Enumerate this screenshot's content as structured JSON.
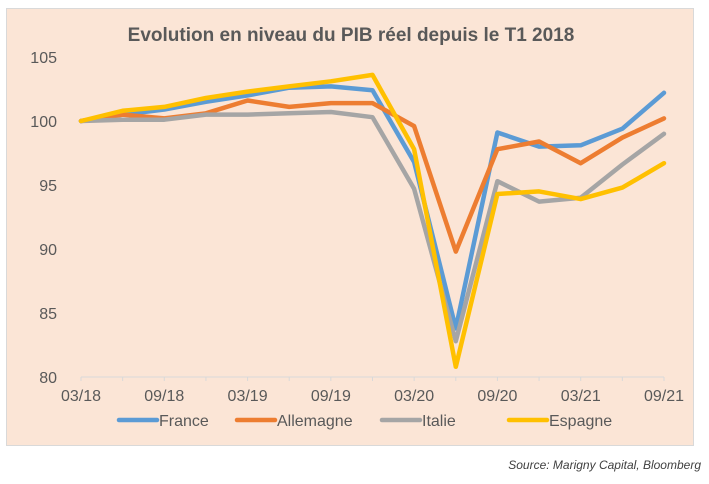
{
  "chart_data": {
    "type": "line",
    "title": "Evolution en niveau du PIB réel depuis le T1 2018",
    "xlabel": "",
    "ylabel": "",
    "ylim": [
      80,
      105
    ],
    "yticks": [
      80,
      85,
      90,
      95,
      100,
      105
    ],
    "ytick_labels": [
      "80",
      "85",
      "90",
      "95",
      "100",
      "105"
    ],
    "x": [
      "03/18",
      "06/18",
      "09/18",
      "12/18",
      "03/19",
      "06/19",
      "09/19",
      "12/19",
      "03/20",
      "06/20",
      "09/20",
      "12/20",
      "03/21",
      "06/21",
      "09/21"
    ],
    "xtick_labels": [
      "03/18",
      "09/18",
      "03/19",
      "09/19",
      "03/20",
      "09/20",
      "03/21",
      "09/21"
    ],
    "grid": false,
    "legend_position": "bottom",
    "series": [
      {
        "name": "France",
        "color": "#5B9BD5",
        "values": [
          100.0,
          100.5,
          100.9,
          101.5,
          102.0,
          102.6,
          102.7,
          102.4,
          96.8,
          83.8,
          99.1,
          98.0,
          98.1,
          99.4,
          102.2
        ]
      },
      {
        "name": "Allemagne",
        "color": "#ED7D31",
        "values": [
          100.0,
          100.5,
          100.2,
          100.6,
          101.6,
          101.1,
          101.4,
          101.4,
          99.6,
          89.8,
          97.8,
          98.4,
          96.7,
          98.7,
          100.2
        ]
      },
      {
        "name": "Italie",
        "color": "#A5A5A5",
        "values": [
          100.0,
          100.1,
          100.1,
          100.5,
          100.5,
          100.6,
          100.7,
          100.3,
          94.7,
          82.8,
          95.3,
          93.7,
          94.0,
          96.6,
          99.0
        ]
      },
      {
        "name": "Espagne",
        "color": "#FFC000",
        "values": [
          100.0,
          100.8,
          101.1,
          101.8,
          102.3,
          102.7,
          103.1,
          103.6,
          97.8,
          80.8,
          94.3,
          94.5,
          93.9,
          94.8,
          96.7
        ]
      }
    ]
  },
  "source": "Source: Marigny Capital, Bloomberg"
}
